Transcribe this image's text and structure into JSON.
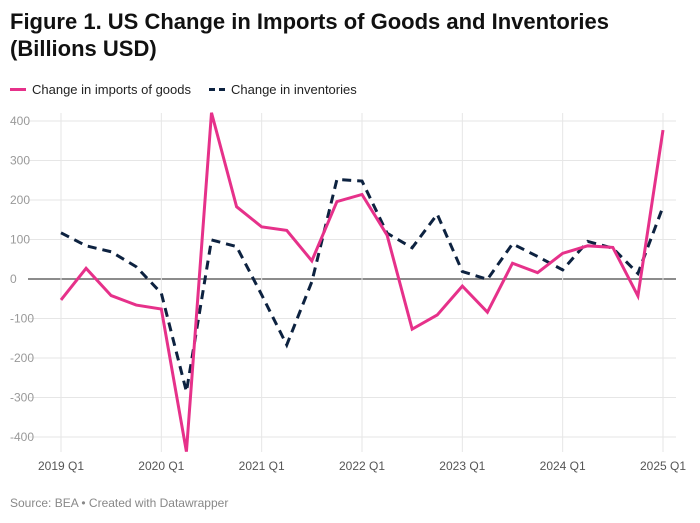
{
  "chart_data": {
    "type": "line",
    "title": "Figure 1. US Change in Imports of Goods and Inventories (Billions USD)",
    "source": "Source: BEA • Created with Datawrapper",
    "x": [
      "2019 Q1",
      "2019 Q2",
      "2019 Q3",
      "2019 Q4",
      "2020 Q1",
      "2020 Q2",
      "2020 Q3",
      "2020 Q4",
      "2021 Q1",
      "2021 Q2",
      "2021 Q3",
      "2021 Q4",
      "2022 Q1",
      "2022 Q2",
      "2022 Q3",
      "2022 Q4",
      "2023 Q1",
      "2023 Q2",
      "2023 Q3",
      "2023 Q4",
      "2024 Q1",
      "2024 Q2",
      "2024 Q3",
      "2024 Q4",
      "2025 Q1"
    ],
    "x_tick_labels": [
      "2019 Q1",
      "2020 Q1",
      "2021 Q1",
      "2022 Q1",
      "2023 Q1",
      "2024 Q1",
      "2025 Q1"
    ],
    "y_ticks": [
      400,
      300,
      200,
      100,
      0,
      -100,
      -200,
      -300,
      -400
    ],
    "ylim": [
      -440,
      430
    ],
    "grid": true,
    "legend_position": "top-left",
    "series": [
      {
        "name": "Change in imports of goods",
        "color": "#e6318a",
        "style": "solid",
        "values": [
          -53,
          27,
          -42,
          -66,
          -76,
          -437,
          421,
          183,
          132,
          123,
          46,
          196,
          214,
          111,
          -127,
          -91,
          -18,
          -84,
          40,
          16,
          65,
          84,
          80,
          -43,
          377
        ]
      },
      {
        "name": "Change in inventories",
        "color": "#0d2240",
        "style": "dashed",
        "values": [
          117,
          84,
          69,
          31,
          -36,
          -285,
          99,
          82,
          -40,
          -167,
          -7,
          252,
          248,
          116,
          79,
          164,
          19,
          -1,
          89,
          57,
          23,
          95,
          78,
          14,
          183
        ]
      }
    ]
  }
}
